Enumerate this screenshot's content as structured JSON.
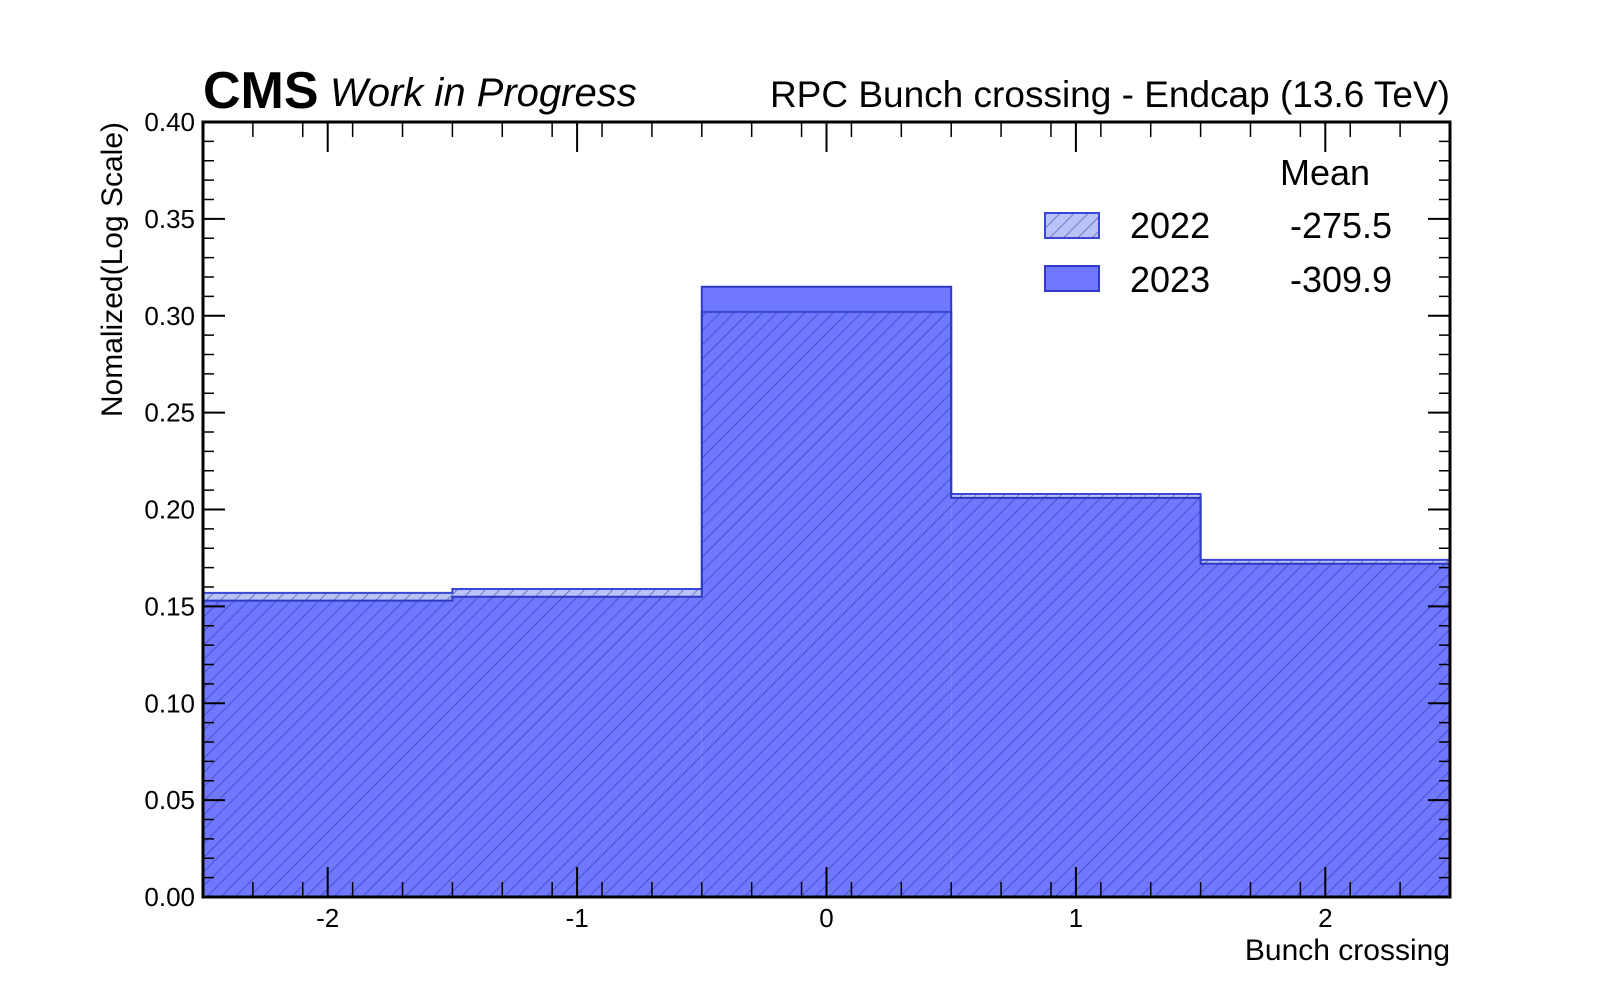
{
  "chart_data": {
    "type": "bar",
    "histogram": true,
    "experiment_label": "CMS",
    "status_label": "Work in Progress",
    "title": "RPC Bunch crossing - Endcap (13.6 TeV)",
    "xlabel": "Bunch crossing",
    "ylabel": "Nomalized(Log Scale)",
    "xlim": [
      -2.5,
      2.5
    ],
    "ylim": [
      0,
      0.4
    ],
    "bin_edges": [
      -2.5,
      -1.5,
      -0.5,
      0.5,
      1.5,
      2.5
    ],
    "x_ticks": [
      -2,
      -1,
      0,
      1,
      2
    ],
    "x_tick_labels": [
      "-2",
      "-1",
      "0",
      "1",
      "2"
    ],
    "y_ticks": [
      0,
      0.05,
      0.1,
      0.15,
      0.2,
      0.25,
      0.3,
      0.35,
      0.4
    ],
    "y_tick_labels": [
      "0.00",
      "0.05",
      "0.10",
      "0.15",
      "0.20",
      "0.25",
      "0.30",
      "0.35",
      "0.40"
    ],
    "legend_placement": "top-right",
    "legend_header": "Mean",
    "series": [
      {
        "name": "2022",
        "mean": "-275.5",
        "values": [
          0.157,
          0.159,
          0.302,
          0.208,
          0.174
        ],
        "color": "#b9c3f7",
        "edge_color": "#3a47d6",
        "style": "hatched"
      },
      {
        "name": "2023",
        "mean": "-309.9",
        "values": [
          0.153,
          0.155,
          0.315,
          0.206,
          0.172
        ],
        "color": "#6f78ff",
        "edge_color": "#2f3ac4",
        "style": "filled"
      }
    ]
  }
}
